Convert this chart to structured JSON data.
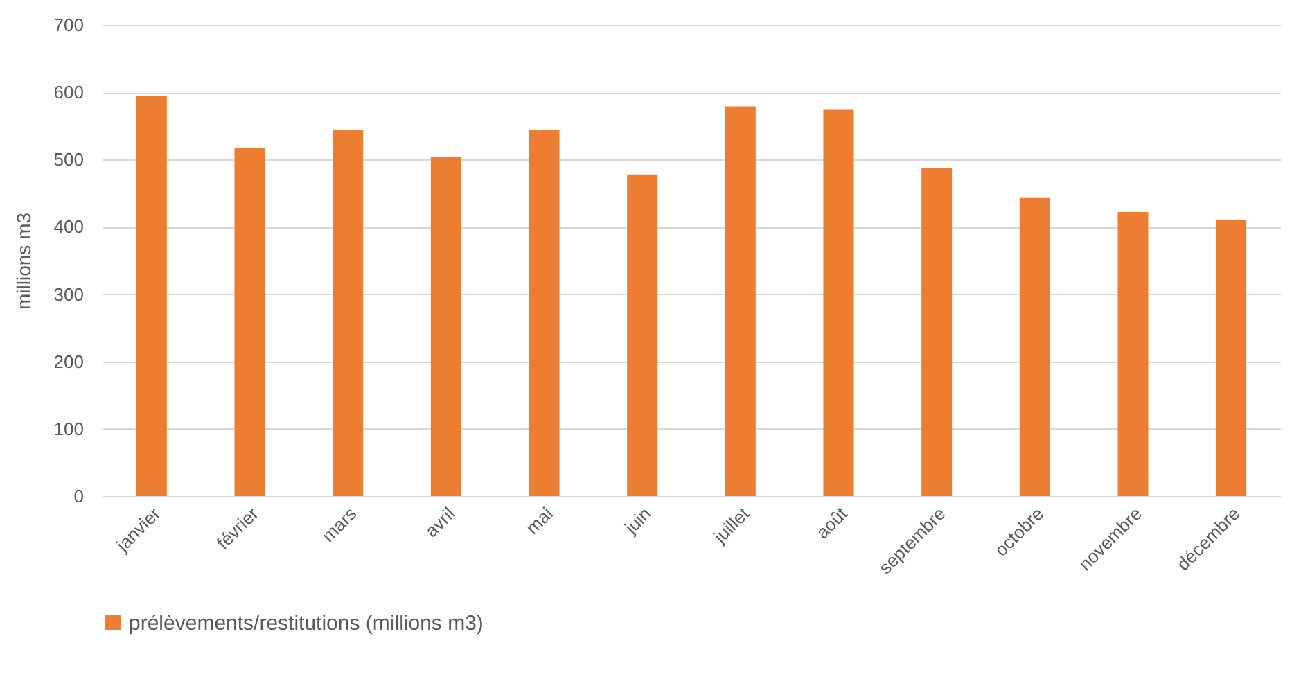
{
  "chart_data": {
    "type": "bar",
    "ylabel": "millions m3",
    "categories": [
      "janvier",
      "février",
      "mars",
      "avril",
      "mai",
      "juin",
      "juillet",
      "août",
      "septembre",
      "octobre",
      "novembre",
      "décembre"
    ],
    "series": [
      {
        "name": "prélèvements/restitutions (millions m3)",
        "color": "#ed7d31",
        "values": [
          595,
          517,
          544,
          504,
          544,
          478,
          579,
          574,
          488,
          443,
          422,
          410
        ]
      }
    ],
    "ylim": [
      0,
      700
    ],
    "yticks": [
      0,
      100,
      200,
      300,
      400,
      500,
      600,
      700
    ],
    "grid": "y",
    "legend": "bottom"
  }
}
